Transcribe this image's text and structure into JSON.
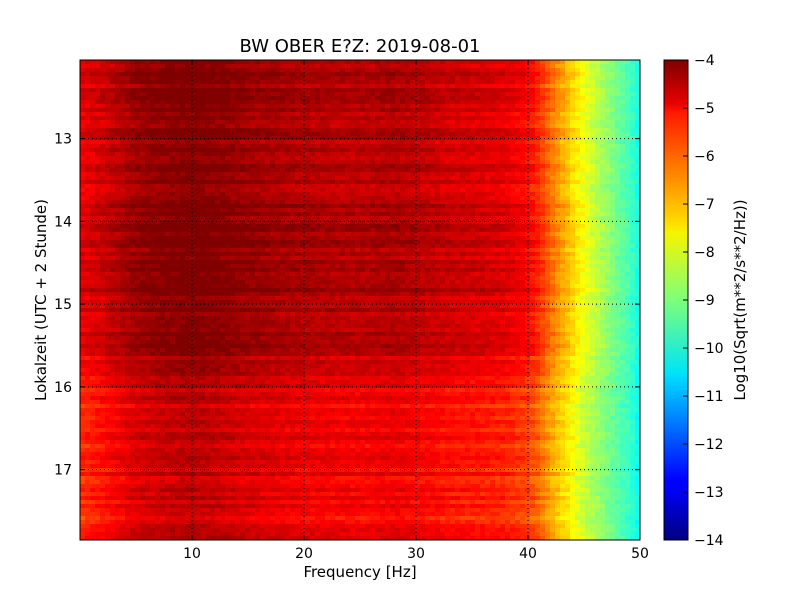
{
  "chart_data": {
    "type": "heatmap",
    "title": "BW OBER E?Z: 2019-08-01",
    "xlabel": "Frequency [Hz]",
    "ylabel": "Lokalzeit (UTC + 2 Stunde)",
    "colorbar_label": "Log10(Sqrt(m**2/s**2/Hz))",
    "xlim": [
      0,
      50
    ],
    "ylim": [
      12.05,
      17.85
    ],
    "y_inverted": true,
    "x_ticks": [
      10,
      20,
      30,
      40,
      50
    ],
    "x_tick_labels": [
      "10",
      "20",
      "30",
      "40",
      "50"
    ],
    "y_ticks": [
      13,
      14,
      15,
      16,
      17
    ],
    "y_tick_labels": [
      "13",
      "14",
      "15",
      "16",
      "17"
    ],
    "clim": [
      -14,
      -4
    ],
    "colorbar_ticks": [
      -4,
      -5,
      -6,
      -7,
      -8,
      -9,
      -10,
      -11,
      -12,
      -13,
      -14
    ],
    "colorbar_tick_labels": [
      "−4",
      "−5",
      "−6",
      "−7",
      "−8",
      "−9",
      "−10",
      "−11",
      "−12",
      "−13",
      "−14"
    ],
    "colormap": "jet",
    "grid": true,
    "grid_style": "dotted",
    "spectrum_profile": {
      "frequency_hz": [
        0,
        2,
        5,
        8,
        10,
        12,
        15,
        20,
        25,
        28,
        30,
        33,
        36,
        38,
        40,
        41,
        42,
        43,
        44,
        45,
        46,
        47,
        48,
        49,
        50
      ],
      "log10_amplitude": [
        -5.4,
        -5.1,
        -4.6,
        -4.4,
        -4.3,
        -4.4,
        -4.6,
        -4.8,
        -4.9,
        -4.8,
        -4.9,
        -5.1,
        -5.2,
        -5.3,
        -5.6,
        -6.0,
        -6.6,
        -7.1,
        -7.6,
        -8.1,
        -8.5,
        -8.9,
        -9.3,
        -9.6,
        -10.2
      ]
    },
    "time_profile": {
      "local_time_h": [
        12.05,
        12.5,
        13.0,
        13.5,
        14.0,
        14.5,
        15.0,
        15.5,
        15.8,
        16.0,
        16.5,
        17.0,
        17.5,
        17.85
      ],
      "offset": [
        0.3,
        0.35,
        0.3,
        0.25,
        0.4,
        0.45,
        0.45,
        0.3,
        0.1,
        -0.25,
        -0.35,
        -0.3,
        -0.35,
        -0.3
      ]
    }
  }
}
